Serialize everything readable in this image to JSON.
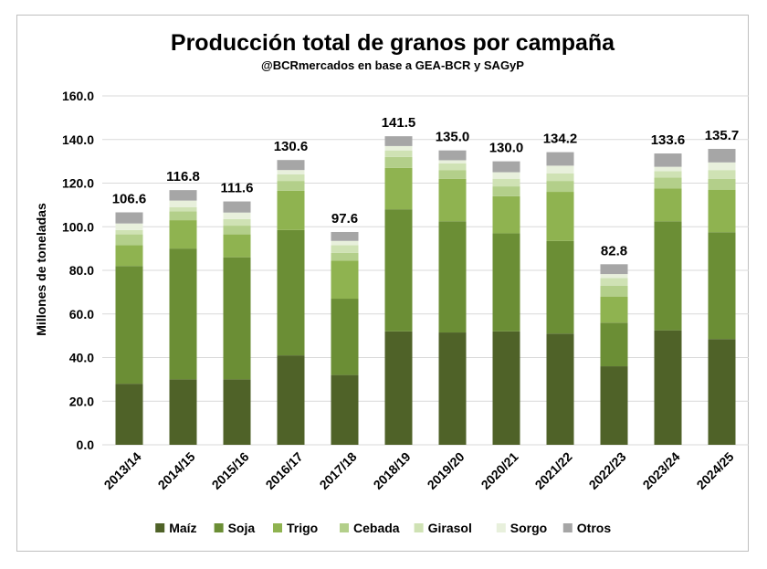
{
  "chart_data": {
    "type": "bar",
    "stacked": true,
    "title": "Producción total de granos por campaña",
    "subtitle": "@BCRmercados en base a GEA-BCR y SAGyP",
    "ylabel": "Millones de toneladas",
    "xlabel": "",
    "ylim": [
      0,
      160
    ],
    "yticks": [
      "0.0",
      "20.0",
      "40.0",
      "60.0",
      "80.0",
      "100.0",
      "120.0",
      "140.0",
      "160.0"
    ],
    "grid": true,
    "legend_position": "bottom",
    "categories": [
      "2013/14",
      "2014/15",
      "2015/16",
      "2016/17",
      "2017/18",
      "2018/19",
      "2019/20",
      "2020/21",
      "2021/22",
      "2022/23",
      "2023/24",
      "2024/25"
    ],
    "totals": [
      "106.6",
      "116.8",
      "111.6",
      "130.6",
      "97.6",
      "141.5",
      "135.0",
      "130.0",
      "134.2",
      "82.8",
      "133.6",
      "135.7"
    ],
    "series": [
      {
        "name": "Maíz",
        "color": "#4f6228",
        "values": [
          28,
          30,
          30,
          41,
          32,
          52,
          51.5,
          52,
          51,
          36,
          52.5,
          48.5
        ]
      },
      {
        "name": "Soja",
        "color": "#6b8e35",
        "values": [
          54,
          60,
          56,
          57.5,
          35,
          56,
          51,
          45,
          42.5,
          20,
          50,
          49
        ]
      },
      {
        "name": "Trigo",
        "color": "#8fb350",
        "values": [
          9.5,
          13,
          10.5,
          18,
          17.5,
          19,
          19.5,
          17,
          22.5,
          12,
          15,
          19.5
        ]
      },
      {
        "name": "Cebada",
        "color": "#b3cf8a",
        "values": [
          5,
          4,
          4,
          4.5,
          3.5,
          5,
          4,
          4.5,
          5,
          5,
          5,
          5
        ]
      },
      {
        "name": "Girasol",
        "color": "#cfe2b4",
        "values": [
          2,
          2,
          3,
          3,
          3.5,
          3,
          3,
          3.5,
          3.5,
          3.5,
          3,
          4
        ]
      },
      {
        "name": "Sorgo",
        "color": "#e8f0dc",
        "values": [
          3,
          3,
          3,
          2,
          2,
          2,
          1.5,
          3,
          3.5,
          1.8,
          2,
          3.5
        ]
      },
      {
        "name": "Otros",
        "color": "#a6a6a6",
        "values": [
          5.1,
          4.8,
          5.1,
          4.6,
          4.1,
          4.5,
          4.5,
          5,
          6.2,
          4.5,
          6.1,
          6.2
        ]
      }
    ]
  }
}
